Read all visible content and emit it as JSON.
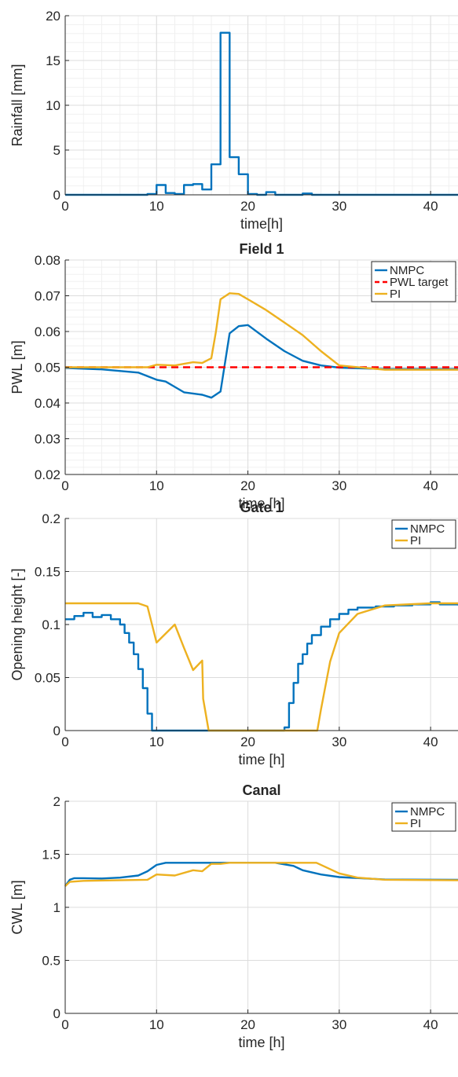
{
  "chart_data": [
    {
      "type": "line",
      "title": "",
      "xlabel": "time[h]",
      "ylabel": "Rainfall [mm]",
      "xlim": [
        0,
        43
      ],
      "ylim": [
        0,
        20
      ],
      "xticks": [
        0,
        10,
        20,
        30,
        40
      ],
      "yticks": [
        0,
        5,
        10,
        15,
        20
      ],
      "grid": true,
      "minor_grid": true,
      "legend": null,
      "series": [
        {
          "color": "#0072BD",
          "step": true,
          "x": [
            0,
            9,
            10,
            11,
            12,
            13,
            14,
            15,
            16,
            17,
            18,
            19,
            20,
            21,
            22,
            23,
            24,
            25,
            26,
            27,
            28,
            43
          ],
          "y": [
            0,
            0.1,
            1.1,
            0.2,
            0.1,
            1.1,
            1.2,
            0.6,
            3.4,
            18.1,
            4.2,
            2.3,
            0.1,
            0,
            0.3,
            0,
            0,
            0,
            0.15,
            0,
            0,
            0
          ]
        }
      ]
    },
    {
      "type": "line",
      "title": "Field 1",
      "xlabel": "time [h]",
      "ylabel": "PWL [m]",
      "xlim": [
        0,
        43
      ],
      "ylim": [
        0.02,
        0.08
      ],
      "xticks": [
        0,
        10,
        20,
        30,
        40
      ],
      "yticks": [
        0.02,
        0.03,
        0.04,
        0.05,
        0.06,
        0.07,
        0.08
      ],
      "grid": true,
      "minor_grid": true,
      "legend": "top-right",
      "series": [
        {
          "name": "NMPC",
          "color": "#0072BD",
          "x": [
            0,
            4,
            8,
            10,
            11,
            12,
            13,
            15,
            16,
            17,
            18,
            19,
            20,
            22,
            24,
            26,
            28,
            30,
            35,
            43
          ],
          "y": [
            0.0498,
            0.0494,
            0.0485,
            0.0465,
            0.046,
            0.0445,
            0.043,
            0.0423,
            0.0415,
            0.0432,
            0.0595,
            0.0615,
            0.0618,
            0.058,
            0.0545,
            0.0518,
            0.0505,
            0.0499,
            0.0495,
            0.0495
          ]
        },
        {
          "name": "PWL target",
          "color": "#FF0000",
          "dash": true,
          "x": [
            0,
            43
          ],
          "y": [
            0.05,
            0.05
          ]
        },
        {
          "name": "PI",
          "color": "#EDB120",
          "x": [
            0,
            9,
            10,
            12,
            14,
            15,
            16,
            16.5,
            17,
            18,
            19,
            20,
            22,
            24,
            26,
            28,
            30,
            35,
            43
          ],
          "y": [
            0.05,
            0.05,
            0.0507,
            0.0505,
            0.0514,
            0.0512,
            0.0525,
            0.06,
            0.069,
            0.0707,
            0.0705,
            0.069,
            0.066,
            0.0625,
            0.059,
            0.0545,
            0.0505,
            0.0493,
            0.0493
          ]
        }
      ]
    },
    {
      "type": "line",
      "title": "Gate 1",
      "xlabel": "time [h]",
      "ylabel": "Opening height [-]",
      "xlim": [
        0,
        43
      ],
      "ylim": [
        0,
        0.2
      ],
      "xticks": [
        0,
        10,
        20,
        30,
        40
      ],
      "yticks": [
        0,
        0.05,
        0.1,
        0.15,
        0.2
      ],
      "grid": true,
      "minor_grid": false,
      "legend": "top-right",
      "series": [
        {
          "name": "NMPC",
          "color": "#0072BD",
          "step": true,
          "x": [
            0,
            1,
            2,
            3,
            4,
            5,
            6,
            6.5,
            7,
            7.5,
            8,
            8.5,
            9,
            9.5,
            10,
            24,
            24.5,
            25,
            25.5,
            26,
            26.5,
            27,
            28,
            29,
            30,
            31,
            32,
            34,
            36,
            38,
            40,
            41,
            43
          ],
          "y": [
            0.105,
            0.108,
            0.111,
            0.107,
            0.109,
            0.105,
            0.1,
            0.092,
            0.083,
            0.072,
            0.058,
            0.04,
            0.016,
            0,
            0,
            0.003,
            0.026,
            0.045,
            0.063,
            0.072,
            0.082,
            0.09,
            0.098,
            0.105,
            0.11,
            0.114,
            0.116,
            0.117,
            0.118,
            0.119,
            0.121,
            0.119,
            0.118
          ]
        },
        {
          "name": "PI",
          "color": "#EDB120",
          "x": [
            0,
            8,
            9,
            10,
            12,
            13,
            14,
            15,
            15.1,
            15.7,
            27.6,
            28,
            29,
            30,
            32,
            35,
            40,
            43
          ],
          "y": [
            0.12,
            0.12,
            0.117,
            0.083,
            0.1,
            0.078,
            0.057,
            0.066,
            0.03,
            0,
            0,
            0.02,
            0.065,
            0.092,
            0.11,
            0.118,
            0.12,
            0.12
          ]
        }
      ]
    },
    {
      "type": "line",
      "title": "Canal",
      "xlabel": "time [h]",
      "ylabel": "CWL [m]",
      "xlim": [
        0,
        43
      ],
      "ylim": [
        0,
        2
      ],
      "xticks": [
        0,
        10,
        20,
        30,
        40
      ],
      "yticks": [
        0,
        0.5,
        1,
        1.5,
        2
      ],
      "grid": true,
      "minor_grid": false,
      "legend": "top-right",
      "series": [
        {
          "name": "NMPC",
          "color": "#0072BD",
          "x": [
            0,
            0.5,
            1,
            2,
            4,
            6,
            8,
            9,
            10,
            11,
            15,
            20,
            23,
            25,
            26,
            28,
            30,
            35,
            43
          ],
          "y": [
            1.2,
            1.26,
            1.275,
            1.275,
            1.272,
            1.28,
            1.3,
            1.34,
            1.4,
            1.42,
            1.42,
            1.42,
            1.42,
            1.39,
            1.35,
            1.31,
            1.285,
            1.262,
            1.26
          ]
        },
        {
          "name": "PI",
          "color": "#EDB120",
          "x": [
            0,
            0.5,
            2,
            9,
            10,
            12,
            14,
            15,
            16,
            17,
            18,
            20,
            27.5,
            28.5,
            30,
            32,
            35,
            43
          ],
          "y": [
            1.2,
            1.24,
            1.25,
            1.26,
            1.31,
            1.3,
            1.35,
            1.34,
            1.41,
            1.41,
            1.42,
            1.42,
            1.42,
            1.38,
            1.32,
            1.28,
            1.26,
            1.255
          ]
        }
      ]
    }
  ]
}
